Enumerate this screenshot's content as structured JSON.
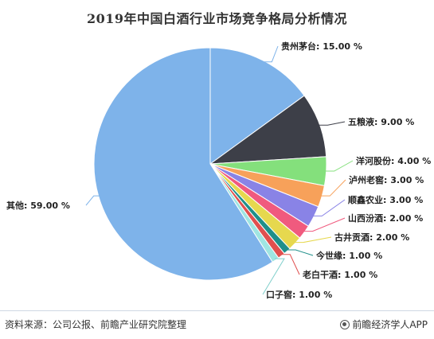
{
  "chart_data": {
    "type": "pie",
    "title": "2019年中国白酒行业市场竞争格局分析情况",
    "slices": [
      {
        "label": "贵州茅台",
        "value": 15.0,
        "display": "贵州茅台: 15.00 %",
        "color": "#7eb3ea"
      },
      {
        "label": "五粮液",
        "value": 9.0,
        "display": "五粮液: 9.00 %",
        "color": "#3d3f48"
      },
      {
        "label": "洋河股份",
        "value": 4.0,
        "display": "洋河股份: 4.00 %",
        "color": "#84e07c"
      },
      {
        "label": "泸州老窖",
        "value": 3.0,
        "display": "泸州老窖: 3.00 %",
        "color": "#f7a15a"
      },
      {
        "label": "顺鑫农业",
        "value": 3.0,
        "display": "顺鑫农业: 3.00 %",
        "color": "#8983e6"
      },
      {
        "label": "山西汾酒",
        "value": 2.0,
        "display": "山西汾酒: 2.00 %",
        "color": "#f05a7e"
      },
      {
        "label": "古井贡酒",
        "value": 2.0,
        "display": "古井贡酒: 2.00 %",
        "color": "#e6d84e"
      },
      {
        "label": "今世缘",
        "value": 1.0,
        "display": "今世缘: 1.00 %",
        "color": "#1f8f8a"
      },
      {
        "label": "老白干酒",
        "value": 1.0,
        "display": "老白干酒: 1.00 %",
        "color": "#e0504f"
      },
      {
        "label": "口子窖",
        "value": 1.0,
        "display": "口子窖: 1.00 %",
        "color": "#9fe5e2"
      },
      {
        "label": "其他",
        "value": 59.0,
        "display": "其他: 59.00 %",
        "color": "#7eb3ea"
      }
    ]
  },
  "footer": {
    "source": "资料来源：公司公报、前瞻产业研究院整理",
    "brand": "前瞻经济学人APP"
  }
}
